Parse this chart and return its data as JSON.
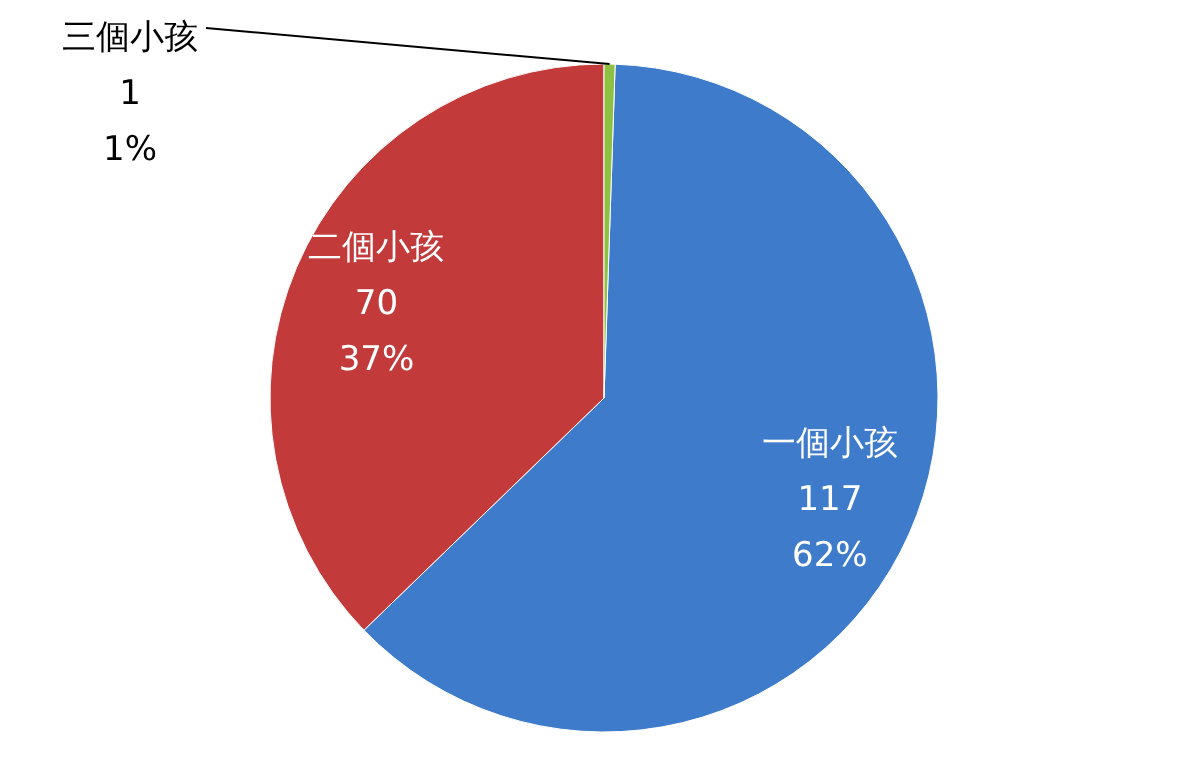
{
  "chart_data": {
    "type": "pie",
    "categories": [
      "一個小孩",
      "二個小孩",
      "三個小孩"
    ],
    "values": [
      117,
      70,
      1
    ],
    "colors": [
      "#3e7bca",
      "#c23a3a",
      "#8dc043"
    ],
    "value_labels": [
      "117\n62%",
      "70\n37%",
      "1\n1%"
    ]
  }
}
